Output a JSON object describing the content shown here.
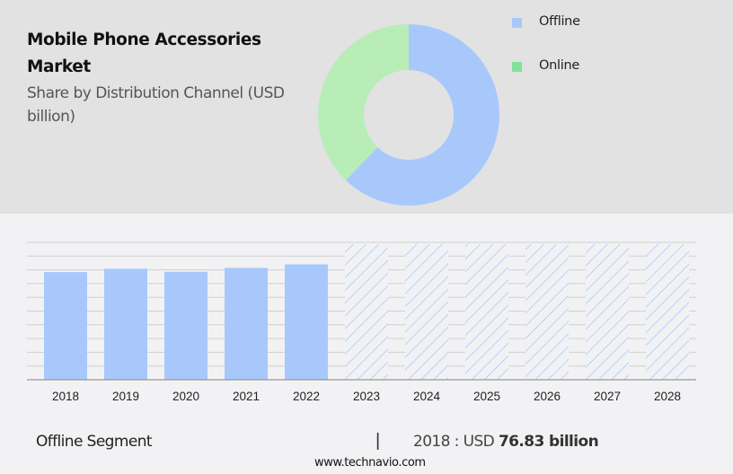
{
  "header": {
    "title": "Mobile Phone Accessories Market",
    "subtitle": "Share by Distribution Channel (USD billion)"
  },
  "legend": [
    {
      "label": "Offline",
      "color": "#a8c8fc"
    },
    {
      "label": "Online",
      "color": "#7ee39a"
    }
  ],
  "footer": {
    "segment_label": "Offline Segment",
    "separator": "|",
    "year_prefix": "2018 : USD ",
    "value": "76.83 billion",
    "source": "www.technavio.com"
  },
  "colors": {
    "offline": "#a8c8fc",
    "online_donut": "#b8edb8",
    "online_legend": "#7ee39a",
    "hatch": "#a8c8fc",
    "grid": "#d0d0d0",
    "axis": "#999999"
  },
  "chart_data": [
    {
      "type": "pie",
      "title": "Mobile Phone Accessories Market — Share by Distribution Channel",
      "donut": true,
      "categories": [
        "Offline",
        "Online"
      ],
      "values": [
        62.2,
        37.8
      ],
      "unit": "%",
      "legend_position": "right"
    },
    {
      "type": "bar",
      "title": "Offline Segment (USD billion)",
      "categories": [
        "2018",
        "2019",
        "2020",
        "2021",
        "2022",
        "2023",
        "2024",
        "2025",
        "2026",
        "2027",
        "2028"
      ],
      "values": [
        76.83,
        79.2,
        77.0,
        79.8,
        82.3,
        null,
        null,
        null,
        null,
        null,
        null
      ],
      "forecast_categories": [
        "2023",
        "2024",
        "2025",
        "2026",
        "2027",
        "2028"
      ],
      "forecast_style": "hatched, full-height placeholder",
      "xlabel": "",
      "ylabel": "USD billion",
      "ylim": [
        0,
        98
      ],
      "grid": true,
      "annotation": "2018 : USD 76.83 billion"
    }
  ]
}
